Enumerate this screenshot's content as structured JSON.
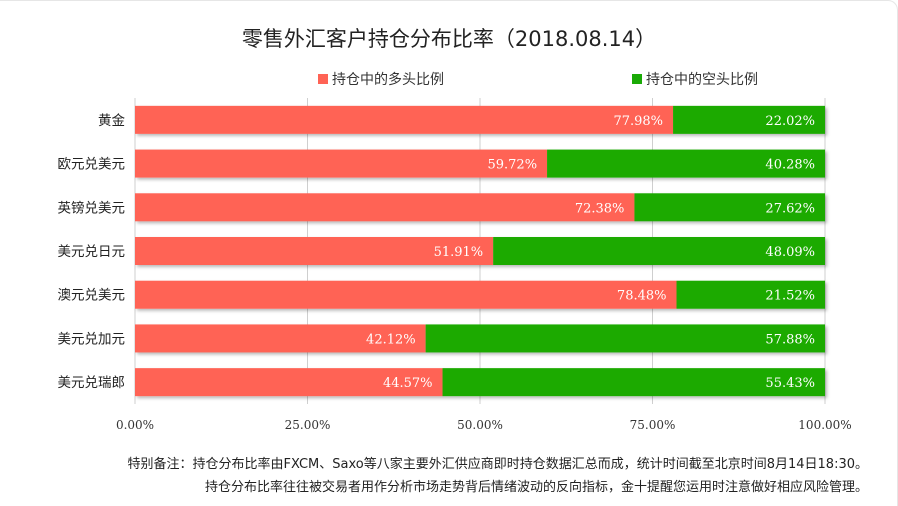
{
  "chart_data": {
    "type": "bar",
    "orientation": "horizontal",
    "stacked": true,
    "title": "零售外汇客户持仓分布比率（2018.08.14）",
    "categories": [
      "黄金",
      "欧元兑美元",
      "英镑兑美元",
      "美元兑日元",
      "澳元兑美元",
      "美元兑加元",
      "美元兑瑞郎"
    ],
    "series": [
      {
        "name": "持仓中的多头比例",
        "color": "#ff6355",
        "values": [
          77.98,
          59.72,
          72.38,
          51.91,
          78.48,
          42.12,
          44.57
        ]
      },
      {
        "name": "持仓中的空头比例",
        "color": "#1aaa06",
        "values": [
          22.02,
          40.28,
          27.62,
          48.09,
          21.52,
          57.88,
          55.43
        ]
      }
    ],
    "value_labels": [
      [
        "77.98%",
        "59.72%",
        "72.38%",
        "51.91%",
        "78.48%",
        "42.12%",
        "44.57%"
      ],
      [
        "22.02%",
        "40.28%",
        "27.62%",
        "48.09%",
        "21.52%",
        "57.88%",
        "55.43%"
      ]
    ],
    "x_ticks": [
      0,
      25,
      50,
      75,
      100
    ],
    "x_tick_labels": [
      "0.00%",
      "25.00%",
      "50.00%",
      "75.00%",
      "100.00%"
    ],
    "xlim": [
      0,
      100
    ],
    "grid": true,
    "legend_position": "top"
  },
  "notes": {
    "line1": "特别备注：持仓分布比率由FXCM、Saxo等八家主要外汇供应商即时持仓数据汇总而成，统计时间截至北京时间8月14日18:30。",
    "line2": "持仓分布比率往往被交易者用作分析市场走势背后情绪波动的反向指标，金十提醒您运用时注意做好相应风险管理。"
  }
}
